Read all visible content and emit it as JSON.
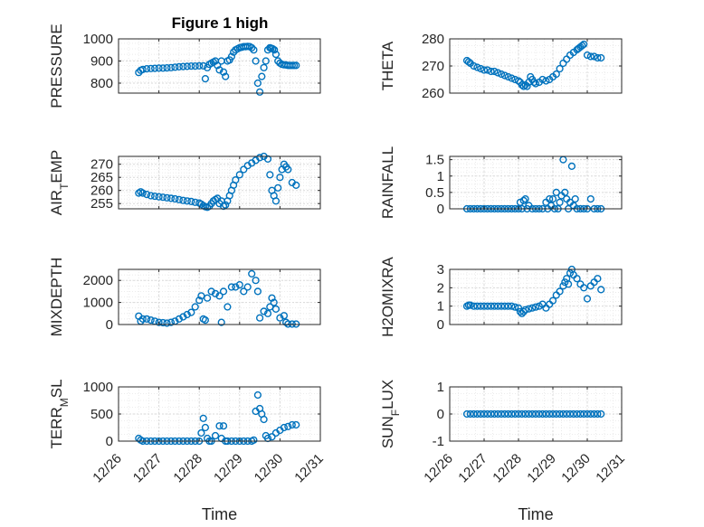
{
  "figure_title": "Figure 1 high",
  "colors": {
    "marker": "#0072BD",
    "axis": "#262626",
    "grid": "#d9d9d9"
  },
  "chart_data": [
    {
      "type": "scatter",
      "position": "top-left",
      "title": "Figure 1 high",
      "ylabel": "PRESSURE",
      "ylabel_sub": "",
      "xlabel": "",
      "xlim": [
        0,
        5
      ],
      "ylim": [
        755,
        1000
      ],
      "yticks": [
        800,
        900,
        1000
      ],
      "grid": true,
      "x": [
        0.5,
        0.55,
        0.6,
        0.7,
        0.8,
        0.9,
        1.0,
        1.1,
        1.2,
        1.3,
        1.4,
        1.5,
        1.6,
        1.7,
        1.8,
        1.9,
        2.0,
        2.1,
        2.15,
        2.2,
        2.25,
        2.3,
        2.35,
        2.4,
        2.45,
        2.5,
        2.55,
        2.6,
        2.65,
        2.7,
        2.75,
        2.8,
        2.85,
        2.9,
        2.95,
        3.0,
        3.05,
        3.1,
        3.15,
        3.2,
        3.25,
        3.3,
        3.35,
        3.4,
        3.45,
        3.5,
        3.55,
        3.6,
        3.65,
        3.7,
        3.75,
        3.78,
        3.82,
        3.86,
        3.9,
        3.95,
        4.0,
        4.05,
        4.1,
        4.15,
        4.2,
        4.25,
        4.3,
        4.35,
        4.4
      ],
      "y": [
        848,
        858,
        862,
        865,
        866,
        867,
        868,
        868,
        869,
        870,
        872,
        874,
        875,
        876,
        877,
        877,
        878,
        878,
        820,
        870,
        885,
        890,
        895,
        900,
        880,
        860,
        900,
        850,
        830,
        900,
        905,
        920,
        940,
        950,
        955,
        960,
        962,
        965,
        965,
        966,
        965,
        960,
        950,
        900,
        800,
        760,
        830,
        870,
        900,
        950,
        960,
        958,
        955,
        950,
        930,
        900,
        890,
        885,
        883,
        882,
        880,
        880,
        880,
        880,
        880
      ]
    },
    {
      "type": "scatter",
      "position": "top-right",
      "ylabel": "THETA",
      "ylabel_sub": "",
      "xlabel": "",
      "xlim": [
        0,
        5
      ],
      "ylim": [
        260,
        280
      ],
      "yticks": [
        260,
        270,
        280
      ],
      "grid": true,
      "x": [
        0.5,
        0.55,
        0.6,
        0.7,
        0.8,
        0.9,
        1.0,
        1.1,
        1.2,
        1.3,
        1.4,
        1.5,
        1.6,
        1.7,
        1.8,
        1.9,
        2.0,
        2.05,
        2.1,
        2.15,
        2.2,
        2.25,
        2.3,
        2.35,
        2.4,
        2.45,
        2.5,
        2.6,
        2.7,
        2.8,
        2.9,
        3.0,
        3.1,
        3.2,
        3.3,
        3.4,
        3.5,
        3.6,
        3.7,
        3.75,
        3.8,
        3.85,
        3.9,
        4.0,
        4.1,
        4.2,
        4.3,
        4.4
      ],
      "y": [
        272,
        271.5,
        271,
        270,
        269.5,
        269,
        268.5,
        268.5,
        268,
        268,
        267.5,
        267,
        266.5,
        266,
        265.5,
        265,
        264.5,
        264,
        263,
        262.5,
        263,
        262.5,
        264,
        266,
        265,
        264,
        263.5,
        264,
        265,
        264.5,
        265,
        266,
        267,
        269,
        271,
        272.5,
        274,
        275,
        276,
        276.5,
        277,
        277.5,
        278,
        274,
        273.5,
        273.5,
        273,
        273
      ]
    },
    {
      "type": "scatter",
      "position": "row2-left",
      "ylabel": "AIR",
      "ylabel_sub": "T",
      "ylabel_after": "EMP",
      "xlabel": "",
      "xlim": [
        0,
        5
      ],
      "ylim": [
        253,
        273
      ],
      "yticks": [
        255,
        260,
        265,
        270
      ],
      "grid": true,
      "x": [
        0.5,
        0.55,
        0.6,
        0.7,
        0.8,
        0.9,
        1.0,
        1.1,
        1.2,
        1.3,
        1.4,
        1.5,
        1.6,
        1.7,
        1.8,
        1.9,
        2.0,
        2.05,
        2.1,
        2.15,
        2.2,
        2.25,
        2.3,
        2.35,
        2.4,
        2.45,
        2.5,
        2.55,
        2.6,
        2.65,
        2.7,
        2.75,
        2.8,
        2.85,
        2.9,
        3.0,
        3.1,
        3.2,
        3.3,
        3.4,
        3.5,
        3.6,
        3.7,
        3.75,
        3.8,
        3.85,
        3.9,
        3.95,
        4.0,
        4.05,
        4.1,
        4.15,
        4.2,
        4.3,
        4.4
      ],
      "y": [
        259,
        259.5,
        259,
        258.5,
        258,
        257.8,
        257.6,
        257.4,
        257.2,
        257,
        256.8,
        256.5,
        256.2,
        256,
        255.8,
        255.5,
        255.2,
        254.8,
        254.2,
        253.8,
        253.6,
        254,
        255,
        256,
        256.5,
        257,
        255,
        256,
        254,
        254.5,
        256,
        258,
        260,
        262,
        264,
        266,
        268,
        269.5,
        270.5,
        271.5,
        272.5,
        273,
        272,
        266,
        260,
        258,
        256,
        261,
        265,
        268,
        270,
        269,
        268,
        263,
        262
      ]
    },
    {
      "type": "scatter",
      "position": "row2-right",
      "ylabel": "RAINFALL",
      "ylabel_sub": "",
      "xlabel": "",
      "xlim": [
        0,
        5
      ],
      "ylim": [
        0,
        1.6
      ],
      "yticks": [
        0,
        0.5,
        1,
        1.5
      ],
      "grid": true,
      "x": [
        0.5,
        0.6,
        0.7,
        0.8,
        0.9,
        1.0,
        1.1,
        1.2,
        1.3,
        1.4,
        1.5,
        1.6,
        1.7,
        1.8,
        1.9,
        2.0,
        2.05,
        2.1,
        2.15,
        2.2,
        2.25,
        2.3,
        2.4,
        2.5,
        2.6,
        2.7,
        2.8,
        2.85,
        2.9,
        2.95,
        3.0,
        3.05,
        3.1,
        3.15,
        3.2,
        3.25,
        3.3,
        3.35,
        3.4,
        3.45,
        3.5,
        3.55,
        3.6,
        3.65,
        3.7,
        3.8,
        3.9,
        4.0,
        4.1,
        4.2,
        4.3,
        4.4
      ],
      "y": [
        0,
        0,
        0,
        0,
        0,
        0,
        0,
        0,
        0,
        0,
        0,
        0,
        0,
        0,
        0,
        0,
        0.2,
        0,
        0.25,
        0.3,
        0,
        0.1,
        0,
        0,
        0,
        0,
        0.2,
        0,
        0.3,
        0.1,
        0.3,
        0,
        0.5,
        0,
        0.2,
        0.4,
        1.5,
        0.5,
        0.3,
        0,
        0.2,
        1.3,
        0.1,
        0.3,
        0,
        0,
        0,
        0,
        0.3,
        0,
        0,
        0
      ]
    },
    {
      "type": "scatter",
      "position": "row3-left",
      "ylabel": "MIXDEPTH",
      "ylabel_sub": "",
      "xlabel": "",
      "xlim": [
        0,
        5
      ],
      "ylim": [
        0,
        2500
      ],
      "yticks": [
        0,
        1000,
        2000
      ],
      "grid": true,
      "x": [
        0.5,
        0.55,
        0.6,
        0.7,
        0.8,
        0.9,
        1.0,
        1.1,
        1.2,
        1.3,
        1.4,
        1.5,
        1.6,
        1.7,
        1.8,
        1.9,
        2.0,
        2.05,
        2.1,
        2.15,
        2.2,
        2.3,
        2.4,
        2.5,
        2.55,
        2.6,
        2.7,
        2.8,
        2.9,
        3.0,
        3.1,
        3.2,
        3.3,
        3.4,
        3.45,
        3.5,
        3.6,
        3.7,
        3.75,
        3.8,
        3.85,
        3.9,
        4.0,
        4.1,
        4.15,
        4.2,
        4.3,
        4.4
      ],
      "y": [
        380,
        150,
        250,
        250,
        200,
        150,
        100,
        80,
        60,
        100,
        150,
        250,
        350,
        450,
        550,
        800,
        1100,
        1300,
        250,
        200,
        1200,
        1500,
        1400,
        1300,
        100,
        1500,
        800,
        1700,
        1700,
        1800,
        1500,
        1700,
        2300,
        2000,
        1500,
        300,
        600,
        500,
        800,
        1200,
        1000,
        700,
        300,
        400,
        100,
        20,
        20,
        20
      ]
    },
    {
      "type": "scatter",
      "position": "row3-right",
      "ylabel": "H2OMIXRA",
      "ylabel_sub": "",
      "xlabel": "",
      "xlim": [
        0,
        5
      ],
      "ylim": [
        0,
        3
      ],
      "yticks": [
        0,
        1,
        2,
        3
      ],
      "grid": true,
      "x": [
        0.5,
        0.55,
        0.6,
        0.7,
        0.8,
        0.9,
        1.0,
        1.1,
        1.2,
        1.3,
        1.4,
        1.5,
        1.6,
        1.7,
        1.8,
        1.9,
        2.0,
        2.05,
        2.1,
        2.15,
        2.2,
        2.3,
        2.4,
        2.5,
        2.6,
        2.7,
        2.8,
        2.9,
        3.0,
        3.1,
        3.2,
        3.3,
        3.35,
        3.4,
        3.45,
        3.5,
        3.55,
        3.6,
        3.7,
        3.8,
        3.9,
        4.0,
        4.1,
        4.2,
        4.3,
        4.4
      ],
      "y": [
        1,
        1.05,
        1.05,
        1,
        1,
        1,
        1,
        1,
        1,
        1,
        1,
        1,
        1,
        1,
        1,
        0.95,
        0.9,
        0.7,
        0.6,
        0.7,
        0.8,
        0.85,
        0.9,
        0.95,
        1,
        1.1,
        0.9,
        1.1,
        1.3,
        1.6,
        1.8,
        2.1,
        2.3,
        2.5,
        2.2,
        2.8,
        3.0,
        2.7,
        2.5,
        2.2,
        2.0,
        1.4,
        2.1,
        2.3,
        2.5,
        1.9
      ]
    },
    {
      "type": "scatter",
      "position": "row4-left",
      "ylabel": "TERR",
      "ylabel_sub": "M",
      "ylabel_after": "SL",
      "xlabel": "Time",
      "xlim": [
        0,
        5
      ],
      "ylim": [
        0,
        1000
      ],
      "yticks": [
        0,
        500,
        1000
      ],
      "grid": true,
      "xticklabels": [
        "12/26",
        "12/27",
        "12/28",
        "12/29",
        "12/30",
        "12/31"
      ],
      "x": [
        0.5,
        0.55,
        0.6,
        0.7,
        0.8,
        0.9,
        1.0,
        1.1,
        1.2,
        1.3,
        1.4,
        1.5,
        1.6,
        1.7,
        1.8,
        1.9,
        2.0,
        2.05,
        2.1,
        2.15,
        2.2,
        2.25,
        2.3,
        2.4,
        2.5,
        2.55,
        2.6,
        2.65,
        2.7,
        2.8,
        2.9,
        3.0,
        3.1,
        3.2,
        3.3,
        3.35,
        3.4,
        3.45,
        3.5,
        3.55,
        3.6,
        3.65,
        3.7,
        3.8,
        3.9,
        4.0,
        4.1,
        4.2,
        4.3,
        4.4
      ],
      "y": [
        50,
        20,
        0,
        0,
        0,
        0,
        0,
        0,
        0,
        0,
        0,
        0,
        0,
        0,
        0,
        0,
        0,
        150,
        420,
        250,
        50,
        0,
        0,
        100,
        280,
        50,
        280,
        0,
        0,
        0,
        0,
        0,
        0,
        0,
        0,
        20,
        550,
        850,
        600,
        500,
        400,
        100,
        50,
        80,
        150,
        200,
        250,
        270,
        300,
        300
      ]
    },
    {
      "type": "scatter",
      "position": "row4-right",
      "ylabel": "SUN",
      "ylabel_sub": "F",
      "ylabel_after": "LUX",
      "xlabel": "Time",
      "xlim": [
        0,
        5
      ],
      "ylim": [
        -1,
        1
      ],
      "yticks": [
        -1,
        0,
        1
      ],
      "grid": true,
      "xticklabels": [
        "12/26",
        "12/27",
        "12/28",
        "12/29",
        "12/30",
        "12/31"
      ],
      "x": [
        0.5,
        0.6,
        0.7,
        0.8,
        0.9,
        1.0,
        1.1,
        1.2,
        1.3,
        1.4,
        1.5,
        1.6,
        1.7,
        1.8,
        1.9,
        2.0,
        2.1,
        2.2,
        2.3,
        2.4,
        2.5,
        2.6,
        2.7,
        2.8,
        2.9,
        3.0,
        3.1,
        3.2,
        3.3,
        3.4,
        3.5,
        3.6,
        3.7,
        3.8,
        3.9,
        4.0,
        4.1,
        4.2,
        4.3,
        4.4
      ],
      "y": [
        0,
        0,
        0,
        0,
        0,
        0,
        0,
        0,
        0,
        0,
        0,
        0,
        0,
        0,
        0,
        0,
        0,
        0,
        0,
        0,
        0,
        0,
        0,
        0,
        0,
        0,
        0,
        0,
        0,
        0,
        0,
        0,
        0,
        0,
        0,
        0,
        0,
        0,
        0,
        0
      ]
    }
  ]
}
